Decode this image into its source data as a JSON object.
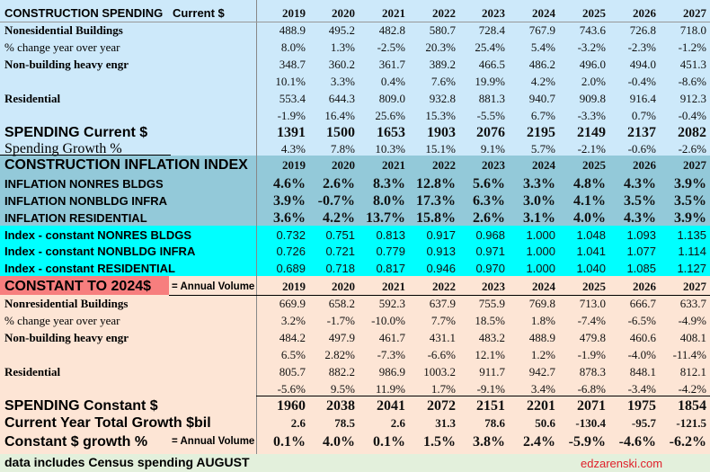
{
  "years": [
    "2019",
    "2020",
    "2021",
    "2022",
    "2023",
    "2024",
    "2025",
    "2026",
    "2027"
  ],
  "colors": {
    "current_bg": "#cde9fa",
    "inflation_bg": "#93c9d9",
    "index_bg": "#00ffff",
    "constant_bg": "#fde5d5",
    "constant_title_bg": "#f77e7e",
    "watermark": "#e0202a"
  },
  "current": {
    "title": "CONSTRUCTION SPENDING",
    "subtitle": "Current $",
    "rows": [
      {
        "label": "Nonesidential Buildings",
        "values": [
          "488.9",
          "495.2",
          "482.8",
          "580.7",
          "728.4",
          "767.9",
          "743.6",
          "726.8",
          "718.0"
        ]
      },
      {
        "label": "% change year over year",
        "values": [
          "8.0%",
          "1.3%",
          "-2.5%",
          "20.3%",
          "25.4%",
          "5.4%",
          "-3.2%",
          "-2.3%",
          "-1.2%"
        ]
      },
      {
        "label": "Non-building heavy engr",
        "values": [
          "348.7",
          "360.2",
          "361.7",
          "389.2",
          "466.5",
          "486.2",
          "496.0",
          "494.0",
          "451.3"
        ]
      },
      {
        "label": "",
        "values": [
          "10.1%",
          "3.3%",
          "0.4%",
          "7.6%",
          "19.9%",
          "4.2%",
          "2.0%",
          "-0.4%",
          "-8.6%"
        ]
      },
      {
        "label": "Residential",
        "values": [
          "553.4",
          "644.3",
          "809.0",
          "932.8",
          "881.3",
          "940.7",
          "909.8",
          "916.4",
          "912.3"
        ]
      },
      {
        "label": "",
        "values": [
          "-1.9%",
          "16.4%",
          "25.6%",
          "15.3%",
          "-5.5%",
          "6.7%",
          "-3.3%",
          "0.7%",
          "-0.4%"
        ]
      },
      {
        "label": "SPENDING Current $",
        "values": [
          "1391",
          "1500",
          "1653",
          "1903",
          "2076",
          "2195",
          "2149",
          "2137",
          "2082"
        ]
      },
      {
        "label": "Spending Growth %",
        "values": [
          "4.3%",
          "7.8%",
          "10.3%",
          "15.1%",
          "9.1%",
          "5.7%",
          "-2.1%",
          "-0.6%",
          "-2.6%"
        ]
      }
    ]
  },
  "inflation": {
    "title": "CONSTRUCTION INFLATION INDEX",
    "rows": [
      {
        "label": "INFLATION NONRES BLDGS",
        "values": [
          "4.6%",
          "2.6%",
          "8.3%",
          "12.8%",
          "5.6%",
          "3.3%",
          "4.8%",
          "4.3%",
          "3.9%"
        ]
      },
      {
        "label": "INFLATION NONBLDG INFRA",
        "values": [
          "3.9%",
          "-0.7%",
          "8.0%",
          "17.3%",
          "6.3%",
          "3.0%",
          "4.1%",
          "3.5%",
          "3.5%"
        ]
      },
      {
        "label": "INFLATION RESIDENTIAL",
        "values": [
          "3.6%",
          "4.2%",
          "13.7%",
          "15.8%",
          "2.6%",
          "3.1%",
          "4.0%",
          "4.3%",
          "3.9%"
        ]
      },
      {
        "label": "Index - constant NONRES BLDGS",
        "values": [
          "0.732",
          "0.751",
          "0.813",
          "0.917",
          "0.968",
          "1.000",
          "1.048",
          "1.093",
          "1.135"
        ]
      },
      {
        "label": "Index - constant NONBLDG INFRA",
        "values": [
          "0.726",
          "0.721",
          "0.779",
          "0.913",
          "0.971",
          "1.000",
          "1.041",
          "1.077",
          "1.114"
        ]
      },
      {
        "label": "Index - constant RESIDENTIAL",
        "values": [
          "0.689",
          "0.718",
          "0.817",
          "0.946",
          "0.970",
          "1.000",
          "1.040",
          "1.085",
          "1.127"
        ]
      }
    ]
  },
  "constant": {
    "title": "CONSTANT TO 2024$",
    "subtitle": "= Annual Volume",
    "rows": [
      {
        "label": "Nonresidential Buildings",
        "values": [
          "669.9",
          "658.2",
          "592.3",
          "637.9",
          "755.9",
          "769.8",
          "713.0",
          "666.7",
          "633.7"
        ]
      },
      {
        "label": "% change year over year",
        "values": [
          "3.2%",
          "-1.7%",
          "-10.0%",
          "7.7%",
          "18.5%",
          "1.8%",
          "-7.4%",
          "-6.5%",
          "-4.9%"
        ]
      },
      {
        "label": "Non-building heavy engr",
        "values": [
          "484.2",
          "497.9",
          "461.7",
          "431.1",
          "483.2",
          "488.9",
          "479.8",
          "460.6",
          "408.1"
        ]
      },
      {
        "label": "",
        "values": [
          "6.5%",
          "2.82%",
          "-7.3%",
          "-6.6%",
          "12.1%",
          "1.2%",
          "-1.9%",
          "-4.0%",
          "-11.4%"
        ]
      },
      {
        "label": "Residential",
        "values": [
          "805.7",
          "882.2",
          "986.9",
          "1003.2",
          "911.7",
          "942.7",
          "878.3",
          "848.1",
          "812.1"
        ]
      },
      {
        "label": "",
        "values": [
          "-5.6%",
          "9.5%",
          "11.9%",
          "1.7%",
          "-9.1%",
          "3.4%",
          "-6.8%",
          "-3.4%",
          "-4.2%"
        ]
      },
      {
        "label": "SPENDING Constant $",
        "values": [
          "1960",
          "2038",
          "2041",
          "2072",
          "2151",
          "2201",
          "2071",
          "1975",
          "1854"
        ]
      },
      {
        "label": "Current Year Total Growth $bil",
        "values": [
          "2.6",
          "78.5",
          "2.6",
          "31.3",
          "78.6",
          "50.6",
          "-130.4",
          "-95.7",
          "-121.5"
        ]
      },
      {
        "label": "Constant $ growth %",
        "subtitle": "= Annual Volume",
        "values": [
          "0.1%",
          "4.0%",
          "0.1%",
          "1.5%",
          "3.8%",
          "2.4%",
          "-5.9%",
          "-4.6%",
          "-6.2%"
        ]
      }
    ]
  },
  "footer": {
    "note": "data includes Census spending AUGUST",
    "watermark": "edzarenski.com"
  }
}
